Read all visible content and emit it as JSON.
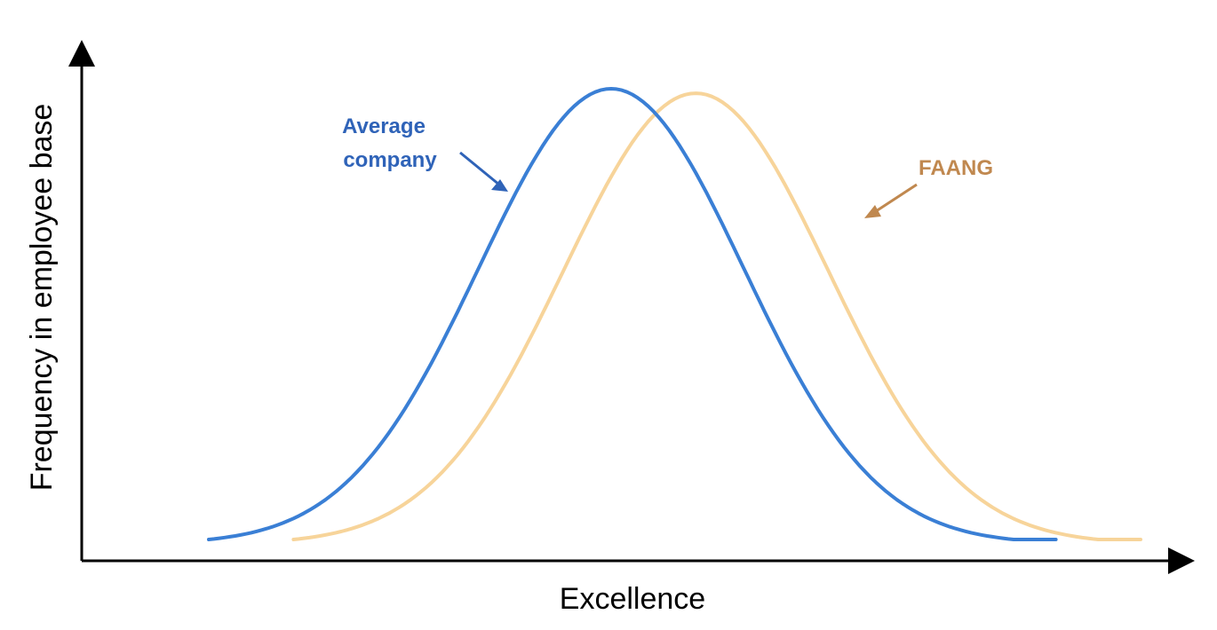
{
  "chart_data": {
    "type": "line",
    "title": "",
    "xlabel": "Excellence",
    "ylabel": "Frequency in employee base",
    "x_ticks": [],
    "y_ticks": [],
    "grid": false,
    "xlim": [
      0,
      10
    ],
    "ylim": [
      0,
      1.05
    ],
    "series": [
      {
        "name": "Average company",
        "color": "#3a7fd5",
        "mean": 5.0,
        "sd": 1.25,
        "x_range": [
          1.2,
          9.2
        ],
        "peak": 1.0
      },
      {
        "name": "FAANG",
        "color": "#f7d49a",
        "mean": 5.8,
        "sd": 1.25,
        "x_range": [
          2.0,
          10.0
        ],
        "peak": 0.99
      }
    ],
    "annotations": [
      {
        "lines": [
          "Average",
          "company"
        ],
        "color": "#2f63b8",
        "series": "Average company",
        "position": "left of curve"
      },
      {
        "lines": [
          "FAANG"
        ],
        "color": "#c0884f",
        "series": "FAANG",
        "position": "right of curve"
      }
    ]
  }
}
